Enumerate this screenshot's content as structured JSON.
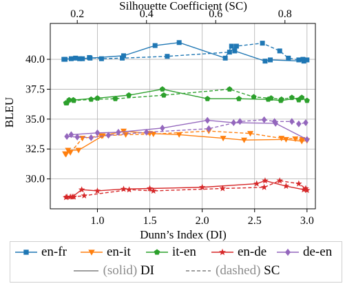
{
  "chart_data": {
    "type": "line",
    "ylabel": "BLEU",
    "xlabel_bottom": "Dunn’s Index (DI)",
    "xlabel_top": "Silhouette Coefficient (SC)",
    "xlim_bottom": [
      0.55,
      3.08
    ],
    "xlim_top": [
      0.122,
      0.888
    ],
    "ylim": [
      27.5,
      43.0
    ],
    "xticks_bottom": [
      "1.0",
      "1.5",
      "2.0",
      "2.5",
      "3.0"
    ],
    "xtick_values_bottom": [
      1.0,
      1.5,
      2.0,
      2.5,
      3.0
    ],
    "xticks_top": [
      "0.2",
      "0.4",
      "0.6",
      "0.8"
    ],
    "xtick_values_top": [
      0.2,
      0.4,
      0.6,
      0.8
    ],
    "yticks": [
      "30.0",
      "32.5",
      "35.0",
      "37.5",
      "40.0"
    ],
    "ytick_values": [
      30.0,
      32.5,
      35.0,
      37.5,
      40.0
    ],
    "grid": true,
    "series": [
      {
        "name": "en-fr",
        "color": "#1f77b4",
        "marker": "square",
        "di": [
          [
            0.68,
            40.0
          ],
          [
            0.75,
            40.05
          ],
          [
            0.83,
            40.05
          ],
          [
            0.93,
            40.1
          ],
          [
            1.25,
            40.3
          ],
          [
            1.55,
            41.15
          ],
          [
            1.78,
            41.4
          ],
          [
            2.22,
            40.1
          ],
          [
            2.28,
            41.1
          ],
          [
            2.31,
            40.7
          ],
          [
            2.6,
            39.85
          ],
          [
            2.65,
            39.95
          ],
          [
            2.97,
            39.85
          ],
          [
            3.0,
            39.95
          ]
        ],
        "sc": [
          [
            0.165,
            40.0
          ],
          [
            0.195,
            40.1
          ],
          [
            0.215,
            40.05
          ],
          [
            0.235,
            40.15
          ],
          [
            0.27,
            40.05
          ],
          [
            0.33,
            40.1
          ],
          [
            0.46,
            40.25
          ],
          [
            0.64,
            40.6
          ],
          [
            0.66,
            41.1
          ],
          [
            0.735,
            41.35
          ],
          [
            0.785,
            40.7
          ],
          [
            0.81,
            40.1
          ],
          [
            0.84,
            39.95
          ],
          [
            0.852,
            40.0
          ]
        ]
      },
      {
        "name": "en-it",
        "color": "#ff7f0e",
        "marker": "triangle-down",
        "di": [
          [
            0.7,
            32.05
          ],
          [
            0.72,
            32.4
          ],
          [
            0.82,
            32.4
          ],
          [
            1.05,
            33.6
          ],
          [
            1.25,
            34.0
          ],
          [
            1.5,
            33.8
          ],
          [
            1.78,
            33.7
          ],
          [
            2.2,
            33.4
          ],
          [
            2.4,
            33.25
          ],
          [
            2.8,
            33.3
          ],
          [
            2.95,
            33.15
          ],
          [
            3.0,
            33.2
          ]
        ],
        "sc": [
          [
            0.165,
            32.1
          ],
          [
            0.18,
            32.2
          ],
          [
            0.215,
            33.4
          ],
          [
            0.27,
            33.6
          ],
          [
            0.34,
            33.7
          ],
          [
            0.42,
            33.75
          ],
          [
            0.58,
            34.0
          ],
          [
            0.7,
            33.8
          ],
          [
            0.79,
            33.4
          ],
          [
            0.83,
            33.35
          ],
          [
            0.85,
            33.3
          ]
        ]
      },
      {
        "name": "it-en",
        "color": "#2ca02c",
        "marker": "pentagon",
        "di": [
          [
            0.7,
            36.35
          ],
          [
            0.73,
            36.6
          ],
          [
            0.77,
            36.6
          ],
          [
            1.0,
            36.75
          ],
          [
            1.3,
            37.0
          ],
          [
            1.62,
            37.5
          ],
          [
            2.05,
            36.7
          ],
          [
            2.35,
            36.7
          ],
          [
            2.63,
            36.65
          ],
          [
            2.75,
            36.55
          ],
          [
            2.95,
            36.8
          ],
          [
            3.0,
            36.55
          ]
        ],
        "sc": [
          [
            0.17,
            36.35
          ],
          [
            0.19,
            36.55
          ],
          [
            0.24,
            36.65
          ],
          [
            0.31,
            36.7
          ],
          [
            0.45,
            37.0
          ],
          [
            0.64,
            37.5
          ],
          [
            0.71,
            36.85
          ],
          [
            0.76,
            36.75
          ],
          [
            0.79,
            36.65
          ],
          [
            0.82,
            36.8
          ],
          [
            0.84,
            36.6
          ]
        ]
      },
      {
        "name": "en-de",
        "color": "#d62728",
        "marker": "star",
        "di": [
          [
            0.7,
            28.45
          ],
          [
            0.76,
            28.5
          ],
          [
            0.85,
            29.1
          ],
          [
            1.0,
            29.0
          ],
          [
            1.25,
            29.15
          ],
          [
            1.5,
            29.2
          ],
          [
            2.0,
            29.3
          ],
          [
            2.52,
            29.6
          ],
          [
            2.6,
            29.85
          ],
          [
            2.8,
            29.4
          ],
          [
            2.97,
            29.1
          ],
          [
            3.0,
            29.05
          ]
        ],
        "sc": [
          [
            0.17,
            28.5
          ],
          [
            0.18,
            28.5
          ],
          [
            0.19,
            28.5
          ],
          [
            0.22,
            28.6
          ],
          [
            0.35,
            29.1
          ],
          [
            0.42,
            29.0
          ],
          [
            0.62,
            29.2
          ],
          [
            0.74,
            29.3
          ],
          [
            0.785,
            29.85
          ],
          [
            0.84,
            29.6
          ],
          [
            0.86,
            29.2
          ]
        ]
      },
      {
        "name": "de-en",
        "color": "#9467bd",
        "marker": "diamond",
        "di": [
          [
            0.75,
            33.7
          ],
          [
            1.0,
            33.85
          ],
          [
            1.2,
            33.9
          ],
          [
            1.62,
            34.25
          ],
          [
            2.05,
            34.9
          ],
          [
            2.3,
            34.7
          ],
          [
            2.7,
            34.65
          ],
          [
            3.0,
            33.3
          ]
        ],
        "sc": [
          [
            0.17,
            33.55
          ],
          [
            0.2,
            33.5
          ],
          [
            0.24,
            33.45
          ],
          [
            0.29,
            33.65
          ],
          [
            0.4,
            33.9
          ],
          [
            0.58,
            34.2
          ],
          [
            0.67,
            34.8
          ],
          [
            0.74,
            34.95
          ],
          [
            0.77,
            34.8
          ],
          [
            0.82,
            34.8
          ],
          [
            0.84,
            34.6
          ],
          [
            0.86,
            34.7
          ]
        ]
      }
    ]
  },
  "legend": {
    "entries": [
      "en-fr",
      "en-it",
      "it-en",
      "en-de",
      "de-en"
    ],
    "solid_note": "(solid)",
    "solid_label": "DI",
    "dashed_note": "(dashed)",
    "dashed_label": "SC"
  }
}
